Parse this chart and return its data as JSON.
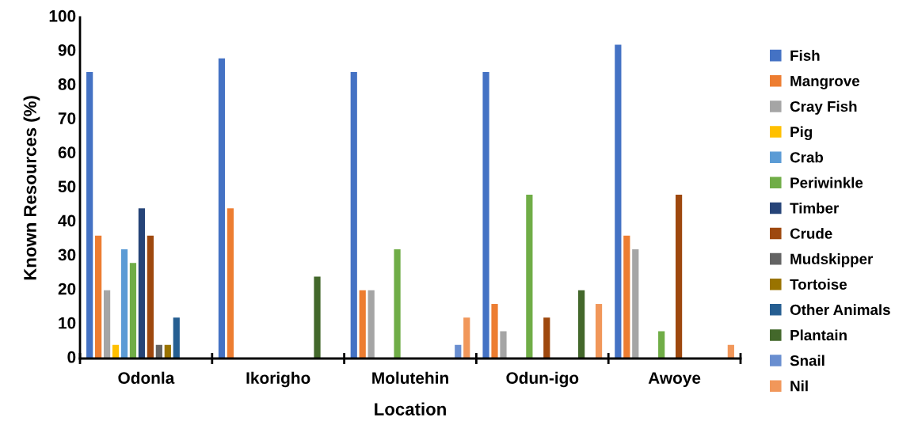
{
  "chart_data": {
    "type": "bar",
    "xlabel": "Location",
    "ylabel": "Known Resources (%)",
    "categories": [
      "Odonla",
      "Ikorigho",
      "Molutehin",
      "Odun-igo",
      "Awoye"
    ],
    "ylim": [
      0,
      100
    ],
    "yticks": [
      0,
      10,
      20,
      30,
      40,
      50,
      60,
      70,
      80,
      90,
      100
    ],
    "grid": false,
    "legend": "right",
    "series": [
      {
        "name": "Fish",
        "color": "#4472c4",
        "values": [
          84,
          88,
          84,
          84,
          92
        ]
      },
      {
        "name": "Mangrove",
        "color": "#ed7d31",
        "values": [
          36,
          44,
          20,
          16,
          36
        ]
      },
      {
        "name": "Cray Fish",
        "color": "#a5a5a5",
        "values": [
          20,
          0,
          20,
          8,
          32
        ]
      },
      {
        "name": "Pig",
        "color": "#ffc000",
        "values": [
          4,
          0,
          0,
          0,
          0
        ]
      },
      {
        "name": "Crab",
        "color": "#5b9bd5",
        "values": [
          32,
          0,
          0,
          0,
          0
        ]
      },
      {
        "name": "Periwinkle",
        "color": "#70ad47",
        "values": [
          28,
          0,
          32,
          48,
          8
        ]
      },
      {
        "name": "Timber",
        "color": "#264478",
        "values": [
          44,
          0,
          0,
          0,
          0
        ]
      },
      {
        "name": "Crude",
        "color": "#9e480e",
        "values": [
          36,
          0,
          0,
          12,
          48
        ]
      },
      {
        "name": "Mudskipper",
        "color": "#636363",
        "values": [
          4,
          0,
          0,
          0,
          0
        ]
      },
      {
        "name": "Tortoise",
        "color": "#997300",
        "values": [
          4,
          0,
          0,
          0,
          0
        ]
      },
      {
        "name": "Other Animals",
        "color": "#255e91",
        "values": [
          12,
          0,
          0,
          0,
          0
        ]
      },
      {
        "name": "Plantain",
        "color": "#43682b",
        "values": [
          0,
          24,
          0,
          20,
          0
        ]
      },
      {
        "name": "Snail",
        "color": "#698ed0",
        "values": [
          0,
          0,
          4,
          0,
          0
        ]
      },
      {
        "name": "Nil",
        "color": "#f1975a",
        "values": [
          0,
          0,
          12,
          16,
          4
        ]
      }
    ]
  }
}
